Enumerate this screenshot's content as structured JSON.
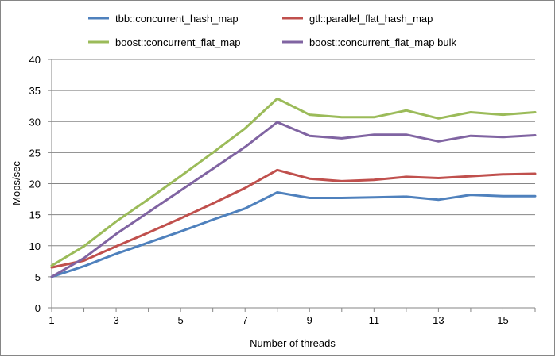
{
  "chart_data": {
    "type": "line",
    "title": "",
    "xlabel": "Number of threads",
    "ylabel": "Mops/sec",
    "xlim": [
      1,
      16
    ],
    "ylim": [
      0,
      40
    ],
    "x": [
      1,
      2,
      3,
      4,
      5,
      6,
      7,
      8,
      9,
      10,
      11,
      12,
      13,
      14,
      15,
      16
    ],
    "x_tick_labels": [
      "1",
      "3",
      "5",
      "7",
      "9",
      "11",
      "13",
      "15"
    ],
    "y_tick_labels": [
      "0",
      "5",
      "10",
      "15",
      "20",
      "25",
      "30",
      "35",
      "40"
    ],
    "grid": "horizontal",
    "legend_position": "top",
    "series": [
      {
        "name": "tbb::concurrent_hash_map",
        "color": "#4f81bd",
        "values": [
          5.0,
          6.7,
          8.7,
          10.5,
          12.3,
          14.2,
          16.0,
          18.6,
          17.7,
          17.7,
          17.8,
          17.9,
          17.4,
          18.2,
          18.0,
          18.0
        ]
      },
      {
        "name": "gtl::parallel_flat_hash_map",
        "color": "#c0504d",
        "values": [
          6.5,
          7.6,
          9.9,
          12.1,
          14.4,
          16.8,
          19.3,
          22.2,
          20.8,
          20.4,
          20.6,
          21.1,
          20.9,
          21.2,
          21.5,
          21.6
        ]
      },
      {
        "name": "boost::concurrent_flat_map",
        "color": "#9bbb59",
        "values": [
          6.8,
          9.9,
          13.9,
          17.5,
          21.2,
          25.0,
          28.9,
          33.7,
          31.1,
          30.7,
          30.7,
          31.8,
          30.5,
          31.5,
          31.1,
          31.5
        ]
      },
      {
        "name": "boost::concurrent_flat_map bulk",
        "color": "#8064a2",
        "values": [
          5.0,
          8.0,
          11.9,
          15.4,
          18.9,
          22.4,
          25.9,
          29.9,
          27.7,
          27.3,
          27.9,
          27.9,
          26.8,
          27.7,
          27.5,
          27.8
        ]
      }
    ]
  }
}
